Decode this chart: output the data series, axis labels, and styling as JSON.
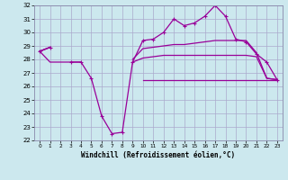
{
  "xlabel": "Windchill (Refroidissement éolien,°C)",
  "bg_color": "#cce8ee",
  "grid_color": "#aaaacc",
  "line_color": "#990099",
  "hours": [
    0,
    1,
    2,
    3,
    4,
    5,
    6,
    7,
    8,
    9,
    10,
    11,
    12,
    13,
    14,
    15,
    16,
    17,
    18,
    19,
    20,
    21,
    22,
    23
  ],
  "series1": [
    28.6,
    28.9,
    null,
    27.8,
    27.8,
    26.6,
    23.8,
    22.5,
    22.6,
    27.8,
    29.4,
    29.5,
    30.0,
    31.0,
    30.5,
    30.7,
    31.2,
    32.0,
    31.2,
    29.5,
    29.3,
    28.4,
    27.8,
    26.5
  ],
  "series2": [
    28.6,
    28.9,
    null,
    null,
    null,
    null,
    null,
    null,
    null,
    28.0,
    28.8,
    28.9,
    29.0,
    29.1,
    29.1,
    29.2,
    29.3,
    29.4,
    29.4,
    29.4,
    29.4,
    28.5,
    26.6,
    26.5
  ],
  "series3": [
    28.6,
    28.9,
    null,
    null,
    null,
    null,
    null,
    null,
    null,
    27.8,
    28.1,
    28.2,
    28.3,
    28.3,
    28.3,
    28.3,
    28.3,
    28.3,
    28.3,
    28.3,
    28.3,
    28.2,
    26.6,
    26.5
  ],
  "series4": [
    28.6,
    27.8,
    27.8,
    27.8,
    27.8,
    null,
    null,
    null,
    null,
    null,
    26.5,
    26.5,
    26.5,
    26.5,
    26.5,
    26.5,
    26.5,
    26.5,
    26.5,
    26.5,
    26.5,
    26.5,
    26.5,
    26.5
  ],
  "ylim": [
    22,
    32
  ],
  "xlim": [
    -0.5,
    23.5
  ],
  "yticks": [
    22,
    23,
    24,
    25,
    26,
    27,
    28,
    29,
    30,
    31,
    32
  ]
}
